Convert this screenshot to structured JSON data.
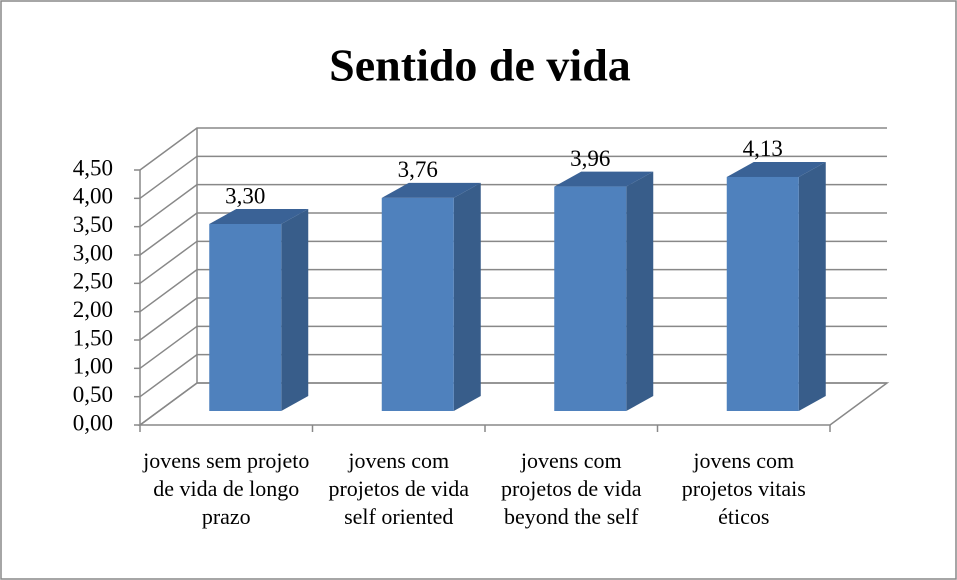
{
  "chart_data": {
    "type": "bar3d",
    "title": "Sentido de vida",
    "categories": [
      "jovens sem projeto de vida de longo prazo",
      "jovens com projetos de vida self oriented",
      "jovens com projetos de vida beyond the self",
      "jovens com projetos vitais éticos"
    ],
    "values": [
      3.3,
      3.76,
      3.96,
      4.13
    ],
    "value_labels": [
      "3,30",
      "3,76",
      "3,96",
      "4,13"
    ],
    "color": "#4f81bd",
    "ylim": [
      0,
      4.5
    ],
    "yticks": [
      {
        "value": 0,
        "label": "0,00"
      },
      {
        "value": 0.5,
        "label": "0,50"
      },
      {
        "value": 1,
        "label": "1,00"
      },
      {
        "value": 1.5,
        "label": "1,50"
      },
      {
        "value": 2,
        "label": "2,00"
      },
      {
        "value": 2.5,
        "label": "2,50"
      },
      {
        "value": 3,
        "label": "3,00"
      },
      {
        "value": 3.5,
        "label": "3,50"
      },
      {
        "value": 4,
        "label": "4,00"
      },
      {
        "value": 4.5,
        "label": "4,50"
      }
    ],
    "grid": true
  }
}
